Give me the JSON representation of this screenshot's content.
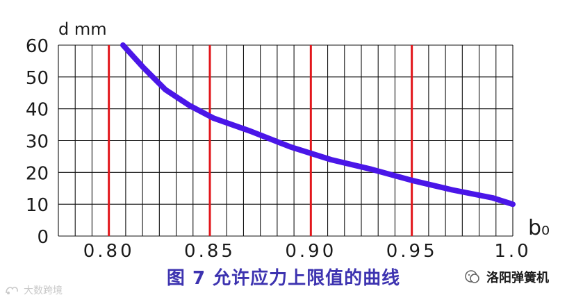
{
  "chart_data": {
    "type": "line",
    "title": "图 7 允许应力上限值的曲线",
    "ylabel": "d mm",
    "xlabel": "b₀",
    "xlim": [
      0.775,
      1.0
    ],
    "ylim": [
      0,
      60
    ],
    "x_ticks": [
      "0.80",
      "0.85",
      "0.90",
      "0.95",
      "1.0"
    ],
    "x_tick_values": [
      0.8,
      0.85,
      0.9,
      0.95,
      1.0
    ],
    "y_ticks": [
      "0",
      "10",
      "20",
      "30",
      "40",
      "50",
      "60"
    ],
    "y_tick_values": [
      0,
      10,
      20,
      30,
      40,
      50,
      60
    ],
    "grid": true,
    "reference_lines": [
      0.8,
      0.85,
      0.9,
      0.95
    ],
    "series": [
      {
        "x": [
          0.807,
          0.817,
          0.828,
          0.84,
          0.852,
          0.87,
          0.89,
          0.91,
          0.93,
          0.95,
          0.97,
          0.99,
          1.0
        ],
        "y": [
          60,
          53,
          46,
          41,
          37,
          33,
          28,
          24,
          21,
          17.5,
          14.5,
          12,
          10
        ]
      }
    ],
    "colors": {
      "grid": "#111111",
      "reference": "#e2161b",
      "curve": "#4a16e8",
      "text": "#1a1a1a"
    }
  },
  "caption": "图 7 允许应力上限值的曲线",
  "watermark_right": "洛阳弹簧机",
  "watermark_left": "大数跨境"
}
